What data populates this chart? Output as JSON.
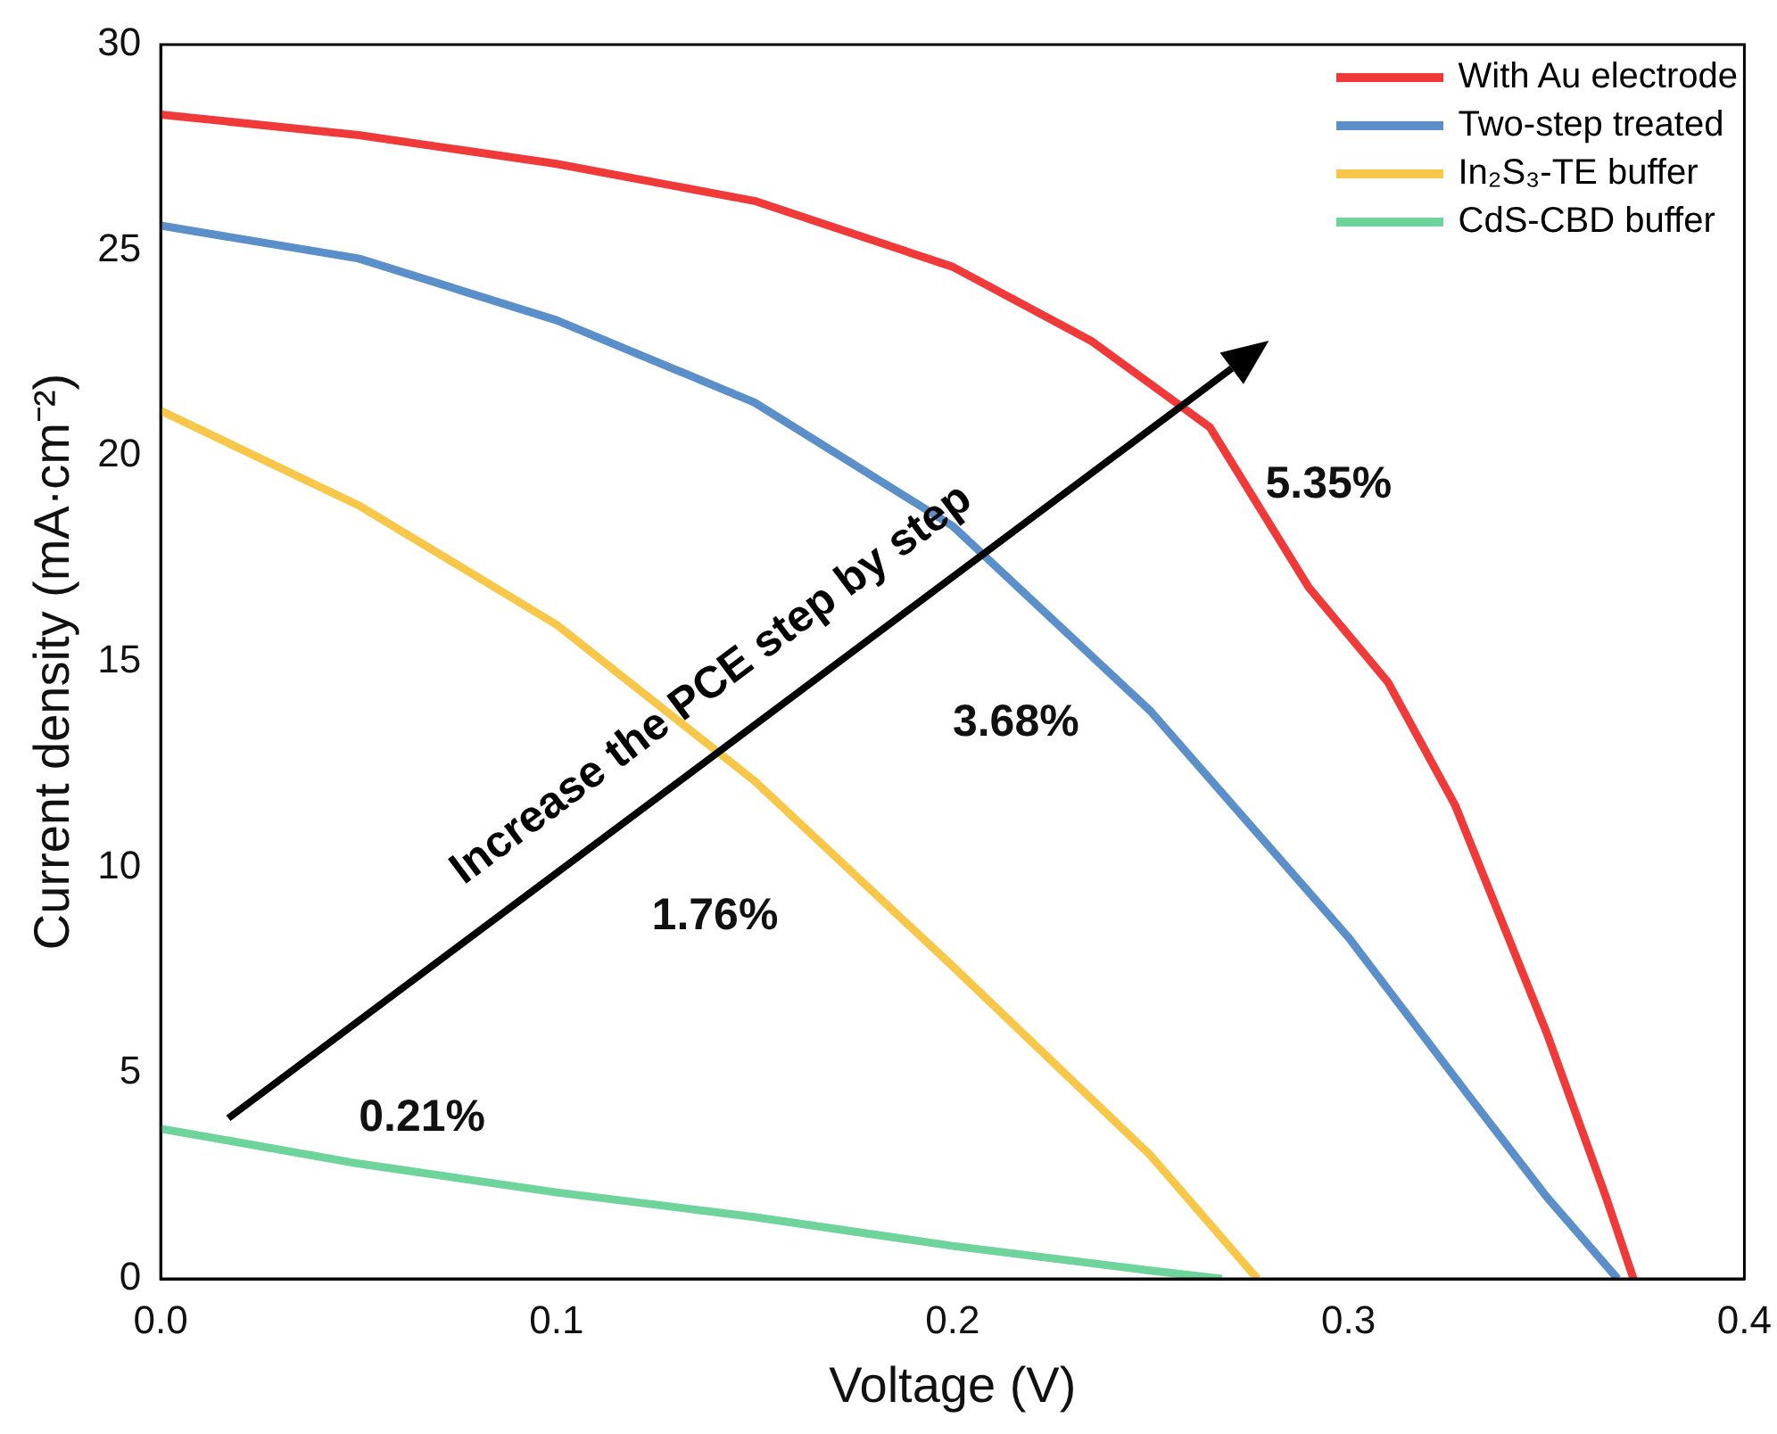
{
  "chart_data": {
    "type": "line",
    "xlabel": "Voltage (V)",
    "ylabel": "Current density (mA·cm⁻²)",
    "xlim": [
      0,
      0.4
    ],
    "xticks": [
      {
        "value": 0,
        "label": "0.0"
      },
      {
        "value": 0.1,
        "label": "0.1"
      },
      {
        "value": 0.2,
        "label": "0.2"
      },
      {
        "value": 0.3,
        "label": "0.3"
      },
      {
        "value": 0.4,
        "label": "0.4"
      }
    ],
    "ylim": [
      0,
      30
    ],
    "yticks": [
      0,
      5,
      10,
      15,
      20,
      25,
      30
    ],
    "grid": false,
    "legend": "top right",
    "marker": "none",
    "line_style": "solid",
    "series": [
      {
        "name": "With Au electrode",
        "color": "#f03a3a",
        "x": [
          0,
          0.05,
          0.1,
          0.15,
          0.2,
          0.235,
          0.265,
          0.29,
          0.31,
          0.327,
          0.35,
          0.365,
          0.372
        ],
        "values": [
          28.3,
          27.8,
          27.1,
          26.2,
          24.6,
          22.8,
          20.7,
          16.8,
          14.5,
          11.5,
          6,
          2,
          0
        ]
      },
      {
        "name": "Two-step treated",
        "color": "#5b8fc9",
        "x": [
          0,
          0.05,
          0.1,
          0.15,
          0.2,
          0.25,
          0.3,
          0.33,
          0.35,
          0.368
        ],
        "values": [
          25.6,
          24.8,
          23.3,
          21.3,
          18.3,
          13.8,
          8.3,
          4.5,
          2,
          0
        ]
      },
      {
        "name": "In₂S₃-TE buffer",
        "color": "#f8c74a",
        "x": [
          0,
          0.05,
          0.1,
          0.15,
          0.2,
          0.25,
          0.277
        ],
        "values": [
          21.1,
          18.8,
          15.9,
          12.1,
          7.6,
          3,
          0
        ]
      },
      {
        "name": "CdS-CBD buffer",
        "color": "#6fd49b",
        "x": [
          0,
          0.05,
          0.1,
          0.15,
          0.2,
          0.25,
          0.268
        ],
        "values": [
          3.65,
          2.8,
          2.1,
          1.5,
          0.8,
          0.2,
          0
        ]
      }
    ],
    "annotations": [
      "5.35%",
      "3.68%",
      "1.76%",
      "0.21%",
      "Increase the PCE step by step"
    ]
  }
}
